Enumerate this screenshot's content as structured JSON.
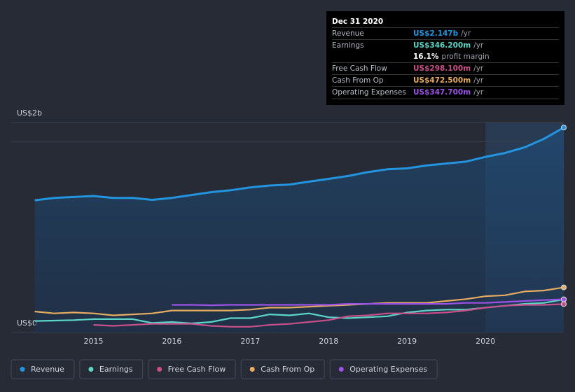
{
  "chart_data": {
    "type": "line",
    "x": [
      2014.25,
      2014.5,
      2014.75,
      2015,
      2015.25,
      2015.5,
      2015.75,
      2016,
      2016.25,
      2016.5,
      2016.75,
      2017,
      2017.25,
      2017.5,
      2017.75,
      2018,
      2018.25,
      2018.5,
      2018.75,
      2019,
      2019.25,
      2019.5,
      2019.75,
      2020,
      2020.25,
      2020.5,
      2020.75,
      2021
    ],
    "xlim": [
      2013.95,
      2021.0
    ],
    "xticks": [
      2015,
      2016,
      2017,
      2018,
      2019,
      2020
    ],
    "ylim": [
      0,
      2.2
    ],
    "yticks": [
      {
        "value": 0,
        "label": "US$0"
      },
      {
        "value": 2,
        "label": "US$2b"
      }
    ],
    "grid": true,
    "series": [
      {
        "name": "Revenue",
        "color": "#2394df",
        "values": [
          1.385,
          1.41,
          1.42,
          1.43,
          1.41,
          1.41,
          1.39,
          1.41,
          1.44,
          1.47,
          1.49,
          1.52,
          1.54,
          1.55,
          1.58,
          1.61,
          1.64,
          1.68,
          1.71,
          1.72,
          1.75,
          1.77,
          1.79,
          1.84,
          1.88,
          1.94,
          2.03,
          2.147
        ]
      },
      {
        "name": "Earnings",
        "color": "#5cd6c7",
        "values": [
          0.12,
          0.125,
          0.13,
          0.14,
          0.14,
          0.14,
          0.1,
          0.11,
          0.095,
          0.11,
          0.15,
          0.15,
          0.19,
          0.18,
          0.2,
          0.16,
          0.15,
          0.16,
          0.17,
          0.21,
          0.23,
          0.24,
          0.24,
          0.26,
          0.28,
          0.3,
          0.31,
          0.3462
        ]
      },
      {
        "name": "Free Cash Flow",
        "color": "#c94f8a",
        "values": [
          null,
          null,
          null,
          0.08,
          0.07,
          0.08,
          0.09,
          0.09,
          0.09,
          0.07,
          0.06,
          0.06,
          0.08,
          0.09,
          0.11,
          0.13,
          0.17,
          0.18,
          0.2,
          0.2,
          0.2,
          0.21,
          0.23,
          0.26,
          0.28,
          0.29,
          0.29,
          0.2981
        ]
      },
      {
        "name": "Cash From Op",
        "color": "#e6ac62",
        "values": [
          0.22,
          0.2,
          0.21,
          0.2,
          0.18,
          0.19,
          0.2,
          0.23,
          0.23,
          0.23,
          0.23,
          0.24,
          0.26,
          0.26,
          0.27,
          0.28,
          0.29,
          0.3,
          0.31,
          0.31,
          0.31,
          0.33,
          0.35,
          0.38,
          0.39,
          0.43,
          0.44,
          0.4725
        ]
      },
      {
        "name": "Operating Expenses",
        "color": "#9b52e6",
        "values": [
          null,
          null,
          null,
          null,
          null,
          null,
          null,
          0.29,
          0.29,
          0.285,
          0.29,
          0.29,
          0.29,
          0.29,
          0.29,
          0.29,
          0.3,
          0.3,
          0.3,
          0.3,
          0.3,
          0.3,
          0.31,
          0.31,
          0.32,
          0.33,
          0.34,
          0.3477
        ]
      }
    ],
    "tooltip": {
      "title": "Dec 31 2020",
      "rows": [
        {
          "label": "Revenue",
          "value": "US$2.147b",
          "unit": "/yr"
        },
        {
          "label": "Earnings",
          "value": "US$346.200m",
          "unit": "/yr"
        },
        {
          "label": "Free Cash Flow",
          "value": "US$298.100m",
          "unit": "/yr"
        },
        {
          "label": "Cash From Op",
          "value": "US$472.500m",
          "unit": "/yr"
        },
        {
          "label": "Operating Expenses",
          "value": "US$347.700m",
          "unit": "/yr"
        }
      ],
      "margin": {
        "value": "16.1%",
        "label": "profit margin"
      }
    }
  }
}
